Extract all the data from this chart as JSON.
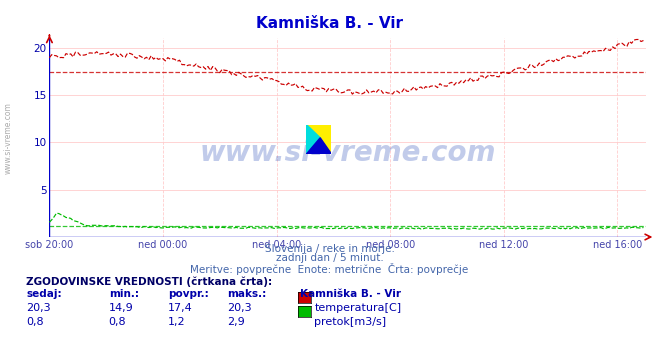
{
  "title": "Kamniška B. - Vir",
  "title_color": "#0000cc",
  "background_color": "#ffffff",
  "plot_bg_color": "#ffffff",
  "grid_h_color": "#ffcccc",
  "grid_v_color": "#ffcccc",
  "x_label_color": "#4444aa",
  "y_label_color": "#0000aa",
  "subtitle_lines": [
    "Slovenija / reke in morje.",
    "zadnji dan / 5 minut.",
    "Meritve: povprečne  Enote: metrične  Črta: povprečje"
  ],
  "subtitle_color": "#4466aa",
  "table_header": "ZGODOVINSKE VREDNOSTI (črtkana črta):",
  "table_cols": [
    "sedaj:",
    "min.:",
    "povpr.:",
    "maks.:"
  ],
  "table_rows": [
    [
      "20,3",
      "14,9",
      "17,4",
      "20,3",
      "#cc0000",
      "temperatura[C]"
    ],
    [
      "0,8",
      "0,8",
      "1,2",
      "2,9",
      "#00bb00",
      "pretok[m3/s]"
    ]
  ],
  "station_name": "Kamniška B. - Vir",
  "x_ticks_labels": [
    "sob 20:00",
    "ned 00:00",
    "ned 04:00",
    "ned 08:00",
    "ned 12:00",
    "ned 16:00"
  ],
  "x_ticks_positions": [
    0,
    48,
    96,
    144,
    192,
    240
  ],
  "ylim": [
    0,
    21
  ],
  "xlim": [
    0,
    252
  ],
  "y_ticks": [
    0,
    5,
    10,
    15,
    20
  ],
  "temp_avg": 17.4,
  "flow_avg": 1.2,
  "watermark": "www.si-vreme.com",
  "watermark_color": "#3355bb",
  "watermark_alpha": 0.3,
  "left_label": "www.si-vreme.com",
  "left_label_color": "#888888"
}
